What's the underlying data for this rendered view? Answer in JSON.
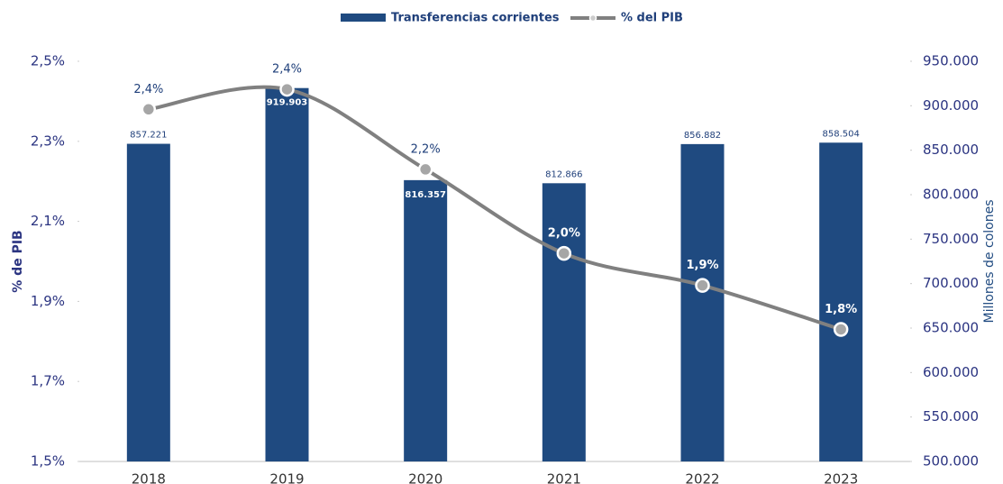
{
  "chart_data": {
    "type": "bar",
    "categories": [
      "2018",
      "2019",
      "2020",
      "2021",
      "2022",
      "2023"
    ],
    "series": [
      {
        "name": "Transferencias corrientes",
        "type": "bar",
        "axis": "y2",
        "color": "#1f4a80",
        "values": [
          857221,
          919903,
          816357,
          812866,
          856882,
          858504
        ],
        "value_labels": [
          "857.221",
          "919.903",
          "816.357",
          "812.866",
          "856.882",
          "858.504"
        ]
      },
      {
        "name": "% del PIB",
        "type": "line",
        "axis": "y",
        "color": "#808080",
        "values": [
          2.38,
          2.43,
          2.23,
          2.02,
          1.94,
          1.83
        ],
        "value_labels": [
          "2,4%",
          "2,4%",
          "2,2%",
          "2,0%",
          "1,9%",
          "1,8%"
        ]
      }
    ],
    "ylabel": "% de PIB",
    "y2label": "Millones de colones",
    "ylim": [
      1.5,
      2.5
    ],
    "yticks": [
      {
        "value": 1.5,
        "label": "1,5%"
      },
      {
        "value": 1.7,
        "label": "1,7%"
      },
      {
        "value": 1.9,
        "label": "1,9%"
      },
      {
        "value": 2.1,
        "label": "2,1%"
      },
      {
        "value": 2.3,
        "label": "2,3%"
      },
      {
        "value": 2.5,
        "label": "2,5%"
      }
    ],
    "y2lim": [
      500000,
      950000
    ],
    "y2ticks": [
      {
        "value": 500000,
        "label": "500.000"
      },
      {
        "value": 550000,
        "label": "550.000"
      },
      {
        "value": 600000,
        "label": "600.000"
      },
      {
        "value": 650000,
        "label": "650.000"
      },
      {
        "value": 700000,
        "label": "700.000"
      },
      {
        "value": 750000,
        "label": "750.000"
      },
      {
        "value": 800000,
        "label": "800.000"
      },
      {
        "value": 850000,
        "label": "850.000"
      },
      {
        "value": 900000,
        "label": "900.000"
      },
      {
        "value": 950000,
        "label": "950.000"
      }
    ],
    "legend": "top",
    "grid": false
  }
}
